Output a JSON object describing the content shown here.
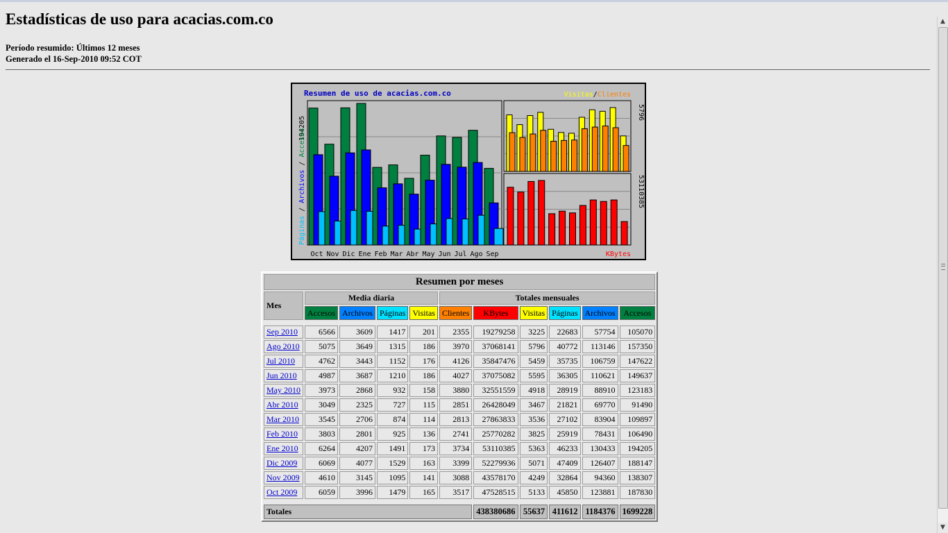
{
  "header": {
    "title": "Estadísticas de uso para acacias.com.co",
    "period": "Período resumido: Últimos 12 meses",
    "generated": "Generado el 16-Sep-2010 09:52 COT"
  },
  "chart_data": {
    "type": "bar",
    "title": "Resumen de uso de acacias.com.co",
    "categories": [
      "Oct",
      "Nov",
      "Dic",
      "Ene",
      "Feb",
      "Mar",
      "Abr",
      "May",
      "Jun",
      "Jul",
      "Ago",
      "Sep"
    ],
    "left_panel": {
      "axis_max_label": "194205",
      "ylabel_parts": [
        "Páginas",
        "Archivos",
        "Accesos"
      ],
      "series": [
        {
          "name": "Accesos",
          "values": [
            187830,
            138307,
            188147,
            194205,
            106490,
            109897,
            91490,
            123183,
            149637,
            147622,
            157350,
            105070
          ]
        },
        {
          "name": "Archivos",
          "values": [
            123881,
            94360,
            126407,
            130433,
            78431,
            83904,
            69770,
            88910,
            110621,
            106759,
            113146,
            57754
          ]
        },
        {
          "name": "Páginas",
          "values": [
            45850,
            32864,
            47409,
            46233,
            25919,
            27102,
            21821,
            28919,
            36305,
            35735,
            40772,
            22683
          ]
        }
      ]
    },
    "top_right_panel": {
      "legend_parts": [
        "Visitas",
        "Clientes"
      ],
      "axis_max_label": "5796",
      "series": [
        {
          "name": "Visitas",
          "values": [
            5133,
            4249,
            5071,
            5363,
            3825,
            3536,
            3467,
            4918,
            5595,
            5459,
            5796,
            3225
          ]
        },
        {
          "name": "Clientes",
          "values": [
            3517,
            3088,
            3399,
            3734,
            2741,
            2813,
            2851,
            3880,
            4027,
            4126,
            3970,
            2355
          ]
        }
      ]
    },
    "bottom_right_panel": {
      "axis_max_label": "53110385",
      "legend_label": "KBytes",
      "series": [
        {
          "name": "KBytes",
          "values": [
            47528515,
            43578170,
            52279936,
            53110385,
            25770282,
            27863833,
            26428049,
            32551559,
            37075082,
            35847476,
            37068141,
            19279258
          ]
        }
      ]
    },
    "colors": {
      "accesos": "#008040",
      "archivos": "#0000ff",
      "paginas": "#00c0ff",
      "visitas": "#ffff00",
      "clientes": "#ff8000",
      "kbytes": "#ff0000",
      "title": "#0000c0",
      "panel_bg": "#c0c0c0"
    }
  },
  "table": {
    "caption": "Resumen por meses",
    "mes_header": "Mes",
    "daily_group": "Media diaria",
    "monthly_group": "Totales mensuales",
    "daily_headers": [
      {
        "label": "Accesos",
        "color": "#008040"
      },
      {
        "label": "Archivos",
        "color": "#0080ff"
      },
      {
        "label": "Páginas",
        "color": "#00e0ff"
      },
      {
        "label": "Visitas",
        "color": "#ffff00"
      }
    ],
    "monthly_headers": [
      {
        "label": "Clientes",
        "color": "#ff8000"
      },
      {
        "label": "KBytes",
        "color": "#ff0000"
      },
      {
        "label": "Visitas",
        "color": "#ffff00"
      },
      {
        "label": "Páginas",
        "color": "#00e0ff"
      },
      {
        "label": "Archivos",
        "color": "#0080ff"
      },
      {
        "label": "Accesos",
        "color": "#008040"
      }
    ],
    "rows": [
      {
        "month": "Sep 2010",
        "d": [
          "6566",
          "3609",
          "1417",
          "201"
        ],
        "m": [
          "2355",
          "19279258",
          "3225",
          "22683",
          "57754",
          "105070"
        ]
      },
      {
        "month": "Ago 2010",
        "d": [
          "5075",
          "3649",
          "1315",
          "186"
        ],
        "m": [
          "3970",
          "37068141",
          "5796",
          "40772",
          "113146",
          "157350"
        ]
      },
      {
        "month": "Jul 2010",
        "d": [
          "4762",
          "3443",
          "1152",
          "176"
        ],
        "m": [
          "4126",
          "35847476",
          "5459",
          "35735",
          "106759",
          "147622"
        ]
      },
      {
        "month": "Jun 2010",
        "d": [
          "4987",
          "3687",
          "1210",
          "186"
        ],
        "m": [
          "4027",
          "37075082",
          "5595",
          "36305",
          "110621",
          "149637"
        ]
      },
      {
        "month": "May 2010",
        "d": [
          "3973",
          "2868",
          "932",
          "158"
        ],
        "m": [
          "3880",
          "32551559",
          "4918",
          "28919",
          "88910",
          "123183"
        ]
      },
      {
        "month": "Abr 2010",
        "d": [
          "3049",
          "2325",
          "727",
          "115"
        ],
        "m": [
          "2851",
          "26428049",
          "3467",
          "21821",
          "69770",
          "91490"
        ]
      },
      {
        "month": "Mar 2010",
        "d": [
          "3545",
          "2706",
          "874",
          "114"
        ],
        "m": [
          "2813",
          "27863833",
          "3536",
          "27102",
          "83904",
          "109897"
        ]
      },
      {
        "month": "Feb 2010",
        "d": [
          "3803",
          "2801",
          "925",
          "136"
        ],
        "m": [
          "2741",
          "25770282",
          "3825",
          "25919",
          "78431",
          "106490"
        ]
      },
      {
        "month": "Ene 2010",
        "d": [
          "6264",
          "4207",
          "1491",
          "173"
        ],
        "m": [
          "3734",
          "53110385",
          "5363",
          "46233",
          "130433",
          "194205"
        ]
      },
      {
        "month": "Dic 2009",
        "d": [
          "6069",
          "4077",
          "1529",
          "163"
        ],
        "m": [
          "3399",
          "52279936",
          "5071",
          "47409",
          "126407",
          "188147"
        ]
      },
      {
        "month": "Nov 2009",
        "d": [
          "4610",
          "3145",
          "1095",
          "141"
        ],
        "m": [
          "3088",
          "43578170",
          "4249",
          "32864",
          "94360",
          "138307"
        ]
      },
      {
        "month": "Oct 2009",
        "d": [
          "6059",
          "3996",
          "1479",
          "165"
        ],
        "m": [
          "3517",
          "47528515",
          "5133",
          "45850",
          "123881",
          "187830"
        ]
      }
    ],
    "totals_label": "Totales",
    "totals": [
      "438380686",
      "55637",
      "411612",
      "1184376",
      "1699228"
    ]
  }
}
